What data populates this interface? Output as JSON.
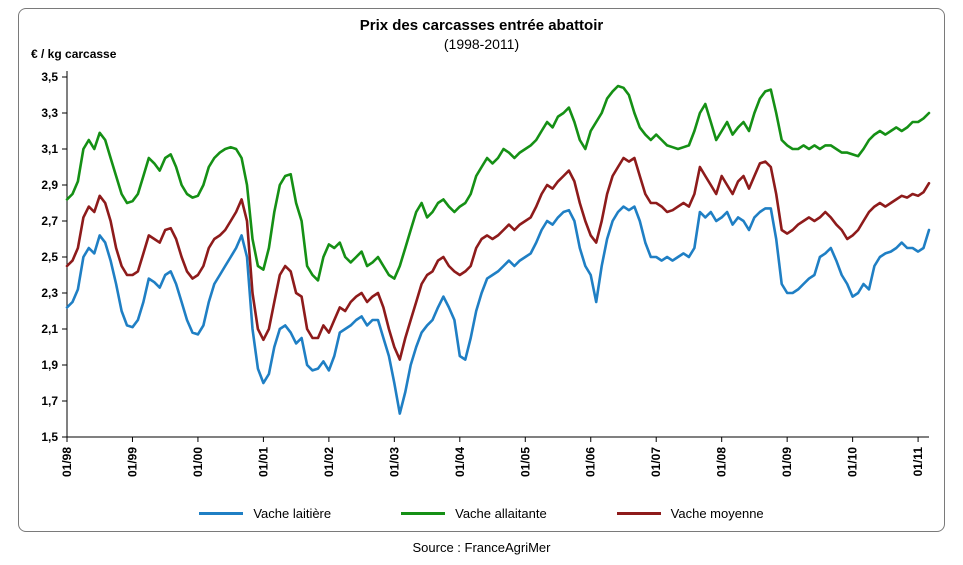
{
  "figure": {
    "title": "Prix des carcasses entrée abattoir",
    "subtitle": "(1998-2011)",
    "y_unit_label": "€ / kg carcasse",
    "source": "Source : FranceAgriMer"
  },
  "chart_data": {
    "type": "line",
    "title": "Prix des carcasses entrée abattoir",
    "subtitle": "(1998-2011)",
    "ylabel": "€ / kg carcasse",
    "ylim": [
      1.5,
      3.5
    ],
    "ytick_step": 0.2,
    "grid": false,
    "legend_position": "bottom",
    "x_start": "1998-01",
    "x_end": "2011-03",
    "x_frequency": "monthly",
    "x_tick_labels": [
      "01/98",
      "01/99",
      "01/00",
      "01/01",
      "01/02",
      "01/03",
      "01/04",
      "01/05",
      "01/06",
      "01/07",
      "01/08",
      "01/09",
      "01/10",
      "01/11"
    ],
    "series": [
      {
        "name": "Vache laitière",
        "color": "#1F7FC4",
        "values": [
          2.22,
          2.25,
          2.32,
          2.5,
          2.55,
          2.52,
          2.62,
          2.58,
          2.48,
          2.35,
          2.2,
          2.12,
          2.11,
          2.15,
          2.25,
          2.38,
          2.36,
          2.33,
          2.4,
          2.42,
          2.35,
          2.25,
          2.15,
          2.08,
          2.07,
          2.12,
          2.25,
          2.35,
          2.4,
          2.45,
          2.5,
          2.55,
          2.62,
          2.5,
          2.1,
          1.88,
          1.8,
          1.85,
          2.0,
          2.1,
          2.12,
          2.08,
          2.02,
          2.05,
          1.9,
          1.87,
          1.88,
          1.92,
          1.87,
          1.95,
          2.08,
          2.1,
          2.12,
          2.15,
          2.17,
          2.12,
          2.15,
          2.15,
          2.05,
          1.95,
          1.8,
          1.63,
          1.75,
          1.9,
          2.0,
          2.08,
          2.12,
          2.15,
          2.22,
          2.28,
          2.22,
          2.15,
          1.95,
          1.93,
          2.05,
          2.2,
          2.3,
          2.38,
          2.4,
          2.42,
          2.45,
          2.48,
          2.45,
          2.48,
          2.5,
          2.52,
          2.58,
          2.65,
          2.7,
          2.68,
          2.72,
          2.75,
          2.76,
          2.7,
          2.55,
          2.45,
          2.4,
          2.25,
          2.45,
          2.6,
          2.7,
          2.75,
          2.78,
          2.76,
          2.78,
          2.7,
          2.58,
          2.5,
          2.5,
          2.48,
          2.5,
          2.48,
          2.5,
          2.52,
          2.5,
          2.55,
          2.75,
          2.72,
          2.75,
          2.7,
          2.72,
          2.75,
          2.68,
          2.72,
          2.7,
          2.65,
          2.72,
          2.75,
          2.77,
          2.77,
          2.6,
          2.35,
          2.3,
          2.3,
          2.32,
          2.35,
          2.38,
          2.4,
          2.5,
          2.52,
          2.55,
          2.48,
          2.4,
          2.35,
          2.28,
          2.3,
          2.35,
          2.32,
          2.45,
          2.5,
          2.52,
          2.53,
          2.55,
          2.58,
          2.55,
          2.55,
          2.53,
          2.55,
          2.65
        ]
      },
      {
        "name": "Vache allaitante",
        "color": "#159015",
        "values": [
          2.82,
          2.85,
          2.92,
          3.1,
          3.15,
          3.1,
          3.19,
          3.15,
          3.05,
          2.95,
          2.85,
          2.8,
          2.81,
          2.85,
          2.95,
          3.05,
          3.02,
          2.98,
          3.05,
          3.07,
          3.0,
          2.9,
          2.85,
          2.83,
          2.84,
          2.9,
          3.0,
          3.05,
          3.08,
          3.1,
          3.11,
          3.1,
          3.05,
          2.9,
          2.6,
          2.45,
          2.43,
          2.55,
          2.75,
          2.9,
          2.95,
          2.96,
          2.8,
          2.7,
          2.45,
          2.4,
          2.37,
          2.5,
          2.57,
          2.55,
          2.58,
          2.5,
          2.47,
          2.5,
          2.53,
          2.45,
          2.47,
          2.5,
          2.45,
          2.4,
          2.38,
          2.45,
          2.55,
          2.65,
          2.75,
          2.8,
          2.72,
          2.75,
          2.8,
          2.82,
          2.78,
          2.75,
          2.78,
          2.8,
          2.85,
          2.95,
          3.0,
          3.05,
          3.02,
          3.05,
          3.1,
          3.08,
          3.05,
          3.08,
          3.1,
          3.12,
          3.15,
          3.2,
          3.25,
          3.22,
          3.28,
          3.3,
          3.33,
          3.25,
          3.15,
          3.1,
          3.2,
          3.25,
          3.3,
          3.38,
          3.42,
          3.45,
          3.44,
          3.4,
          3.3,
          3.22,
          3.18,
          3.15,
          3.18,
          3.15,
          3.12,
          3.11,
          3.1,
          3.11,
          3.12,
          3.2,
          3.3,
          3.35,
          3.25,
          3.15,
          3.2,
          3.25,
          3.18,
          3.22,
          3.25,
          3.2,
          3.3,
          3.38,
          3.42,
          3.43,
          3.3,
          3.15,
          3.12,
          3.1,
          3.1,
          3.12,
          3.1,
          3.12,
          3.1,
          3.12,
          3.12,
          3.1,
          3.08,
          3.08,
          3.07,
          3.06,
          3.1,
          3.15,
          3.18,
          3.2,
          3.18,
          3.2,
          3.22,
          3.2,
          3.22,
          3.25,
          3.25,
          3.27,
          3.3
        ]
      },
      {
        "name": "Vache moyenne",
        "color": "#8E1B1B",
        "values": [
          2.45,
          2.48,
          2.55,
          2.72,
          2.78,
          2.75,
          2.84,
          2.8,
          2.7,
          2.55,
          2.45,
          2.4,
          2.4,
          2.42,
          2.52,
          2.62,
          2.6,
          2.58,
          2.65,
          2.66,
          2.6,
          2.5,
          2.42,
          2.38,
          2.4,
          2.45,
          2.55,
          2.6,
          2.62,
          2.65,
          2.7,
          2.75,
          2.82,
          2.7,
          2.3,
          2.1,
          2.04,
          2.1,
          2.25,
          2.4,
          2.45,
          2.42,
          2.3,
          2.28,
          2.1,
          2.05,
          2.05,
          2.12,
          2.08,
          2.15,
          2.22,
          2.2,
          2.25,
          2.28,
          2.3,
          2.25,
          2.28,
          2.3,
          2.22,
          2.1,
          2.0,
          1.93,
          2.05,
          2.15,
          2.25,
          2.35,
          2.4,
          2.42,
          2.48,
          2.5,
          2.45,
          2.42,
          2.4,
          2.42,
          2.45,
          2.55,
          2.6,
          2.62,
          2.6,
          2.62,
          2.65,
          2.68,
          2.65,
          2.68,
          2.7,
          2.72,
          2.78,
          2.85,
          2.9,
          2.88,
          2.92,
          2.95,
          2.98,
          2.92,
          2.8,
          2.7,
          2.62,
          2.58,
          2.7,
          2.85,
          2.95,
          3.0,
          3.05,
          3.03,
          3.05,
          2.95,
          2.85,
          2.8,
          2.8,
          2.78,
          2.75,
          2.76,
          2.78,
          2.8,
          2.78,
          2.85,
          3.0,
          2.95,
          2.9,
          2.85,
          2.95,
          2.9,
          2.85,
          2.92,
          2.95,
          2.88,
          2.95,
          3.02,
          3.03,
          3.0,
          2.85,
          2.65,
          2.63,
          2.65,
          2.68,
          2.7,
          2.72,
          2.7,
          2.72,
          2.75,
          2.72,
          2.68,
          2.65,
          2.6,
          2.62,
          2.65,
          2.7,
          2.75,
          2.78,
          2.8,
          2.78,
          2.8,
          2.82,
          2.84,
          2.83,
          2.85,
          2.84,
          2.86,
          2.91
        ]
      }
    ]
  }
}
